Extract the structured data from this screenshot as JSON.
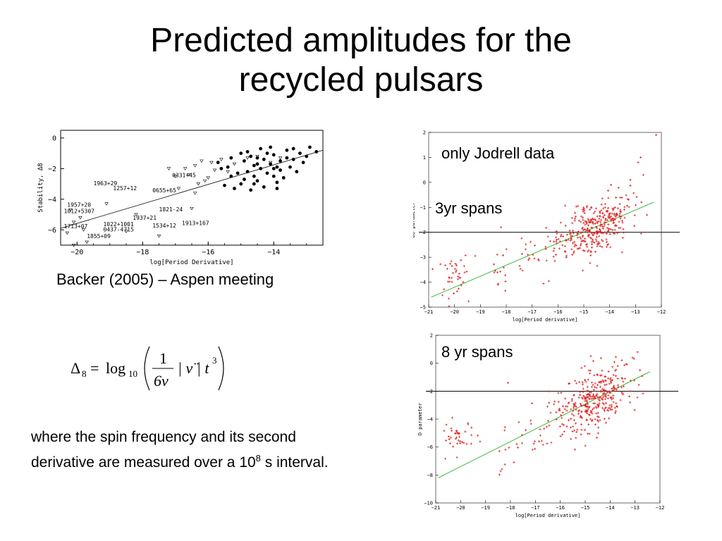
{
  "slide": {
    "title_line1": "Predicted amplitudes for the",
    "title_line2": "recycled pulsars",
    "caption": "Backer (2005) – Aspen meeting",
    "label_jodrell": "only Jodrell data",
    "label_3yr": "3yr spans",
    "label_8yr": "8 yr spans",
    "para_text_1": "where the spin frequency and its second",
    "para_text_2": "derivative are measured over a 10",
    "para_sup": "8",
    "para_text_3": " s interval.",
    "formula": {
      "lhs": "Δ",
      "lhs_sub": "8",
      "eq": "=",
      "log": "log",
      "log_sub": "10",
      "num": "1",
      "den": "6ν",
      "mid": "| ν̈ | t",
      "exp": "3"
    }
  },
  "chart_data": [
    {
      "type": "scatter",
      "title": "",
      "xlabel": "log[Period Derivative]",
      "ylabel": "Stability, Δ8",
      "xlim": [
        -20.5,
        -12.5
      ],
      "ylim": [
        -7,
        0.5
      ],
      "xticks": [
        -20,
        -18,
        -16,
        -14
      ],
      "yticks": [
        0,
        -2,
        -4,
        -6
      ],
      "fit_line": [
        [
          -20.5,
          -5.9
        ],
        [
          -12.5,
          -0.8
        ]
      ],
      "series": [
        {
          "marker": "filled-circle",
          "points": [
            [
              -14.9,
              -1.5
            ],
            [
              -14.7,
              -1.2
            ],
            [
              -14.6,
              -1.8
            ],
            [
              -14.5,
              -1.3
            ],
            [
              -14.3,
              -1.4
            ],
            [
              -14.1,
              -1.7
            ],
            [
              -14.0,
              -1.1
            ],
            [
              -13.9,
              -1.9
            ],
            [
              -13.8,
              -1.5
            ],
            [
              -13.6,
              -0.8
            ],
            [
              -13.4,
              -0.7
            ],
            [
              -13.2,
              -1.0
            ],
            [
              -13.0,
              -1.2
            ],
            [
              -15.1,
              -2.3
            ],
            [
              -14.8,
              -2.2
            ],
            [
              -14.6,
              -2.5
            ],
            [
              -14.4,
              -2.0
            ],
            [
              -14.2,
              -2.3
            ],
            [
              -14.0,
              -2.5
            ],
            [
              -13.8,
              -2.1
            ],
            [
              -13.7,
              -2.6
            ],
            [
              -13.9,
              -2.9
            ],
            [
              -14.5,
              -2.8
            ],
            [
              -14.9,
              -2.7
            ],
            [
              -15.3,
              -2.5
            ],
            [
              -15.4,
              -1.9
            ],
            [
              -15.0,
              -1.0
            ],
            [
              -14.8,
              -0.9
            ],
            [
              -14.1,
              -0.6
            ],
            [
              -13.5,
              -1.9
            ],
            [
              -13.3,
              -2.2
            ],
            [
              -15.5,
              -3.1
            ],
            [
              -15.2,
              -3.3
            ],
            [
              -14.7,
              -3.4
            ],
            [
              -14.3,
              -3.2
            ],
            [
              -13.9,
              -3.3
            ],
            [
              -14.6,
              -3.0
            ],
            [
              -15.0,
              -3.0
            ],
            [
              -13.6,
              -1.3
            ],
            [
              -14.2,
              -1.0
            ],
            [
              -13.1,
              -1.6
            ],
            [
              -12.9,
              -0.6
            ],
            [
              -12.7,
              -0.9
            ],
            [
              -15.6,
              -2.0
            ],
            [
              -15.7,
              -1.6
            ],
            [
              -14.0,
              -2.0
            ],
            [
              -14.5,
              -1.7
            ],
            [
              -13.4,
              -1.4
            ],
            [
              -15.3,
              -1.3
            ],
            [
              -14.4,
              -0.7
            ]
          ]
        },
        {
          "marker": "open-triangle",
          "points": [
            [
              -17.2,
              -2.0
            ],
            [
              -16.7,
              -2.0
            ],
            [
              -16.6,
              -2.4
            ],
            [
              -16.4,
              -1.8
            ],
            [
              -16.2,
              -1.5
            ],
            [
              -16.1,
              -2.8
            ],
            [
              -16.0,
              -2.6
            ],
            [
              -15.9,
              -1.6
            ],
            [
              -15.8,
              -2.1
            ],
            [
              -15.6,
              -1.4
            ],
            [
              -15.4,
              -2.2
            ],
            [
              -15.2,
              -1.7
            ],
            [
              -14.8,
              -1.3
            ],
            [
              -14.5,
              -1.2
            ],
            [
              -14.1,
              -1.6
            ],
            [
              -13.8,
              -1.3
            ],
            [
              -16.4,
              -3.6
            ],
            [
              -16.3,
              -3.0
            ],
            [
              -16.5,
              -4.6
            ],
            [
              -17.5,
              -6.4
            ],
            [
              -18.2,
              -5.0
            ],
            [
              -19.1,
              -4.3
            ],
            [
              -19.9,
              -5.2
            ],
            [
              -20.1,
              -5.5
            ],
            [
              -20.2,
              -4.7
            ],
            [
              -19.8,
              -6.0
            ],
            [
              -20.3,
              -6.2
            ],
            [
              -19.7,
              -6.8
            ],
            [
              -20.1,
              -7.0
            ],
            [
              -18.5,
              -6.1
            ],
            [
              -17.0,
              -2.5
            ],
            [
              -16.9,
              -3.3
            ]
          ]
        }
      ],
      "annotations": [
        "1963+29",
        "1257+12",
        "0655+65",
        "0331+45",
        "1957+20",
        "1012+5307",
        "1937+21",
        "1713+07",
        "1022+1001",
        "0437-4715",
        "1855+09",
        "1821-24",
        "1534+12",
        "1913+167"
      ]
    },
    {
      "type": "scatter",
      "title": "",
      "xlabel": "log[Period derivative]",
      "ylabel": "D8 parameter",
      "xlim": [
        -21,
        -12
      ],
      "ylim": [
        -5,
        2
      ],
      "xticks": [
        -21,
        -20,
        -19,
        -18,
        -17,
        -16,
        -15,
        -14,
        -13,
        -12
      ],
      "yticks": [
        2,
        1,
        0,
        -1,
        -2,
        -3,
        -4,
        -5
      ],
      "hline": -2,
      "fit_line": [
        [
          -20.9,
          -4.6
        ],
        [
          -12.3,
          -0.8
        ]
      ],
      "marker": "red-plus",
      "point_count": 420
    },
    {
      "type": "scatter",
      "title": "",
      "xlabel": "log[Period derivative]",
      "ylabel": "D parameter",
      "xlim": [
        -21,
        -12
      ],
      "ylim": [
        -10,
        2
      ],
      "xticks": [
        -21,
        -20,
        -19,
        -18,
        -17,
        -16,
        -15,
        -14,
        -13,
        -12
      ],
      "yticks": [
        2,
        0,
        -2,
        -4,
        -6,
        -8,
        -10
      ],
      "hline": -2,
      "fit_line": [
        [
          -20.9,
          -8.2
        ],
        [
          -12.4,
          -0.6
        ]
      ],
      "marker": "red-plus",
      "point_count": 420
    }
  ]
}
